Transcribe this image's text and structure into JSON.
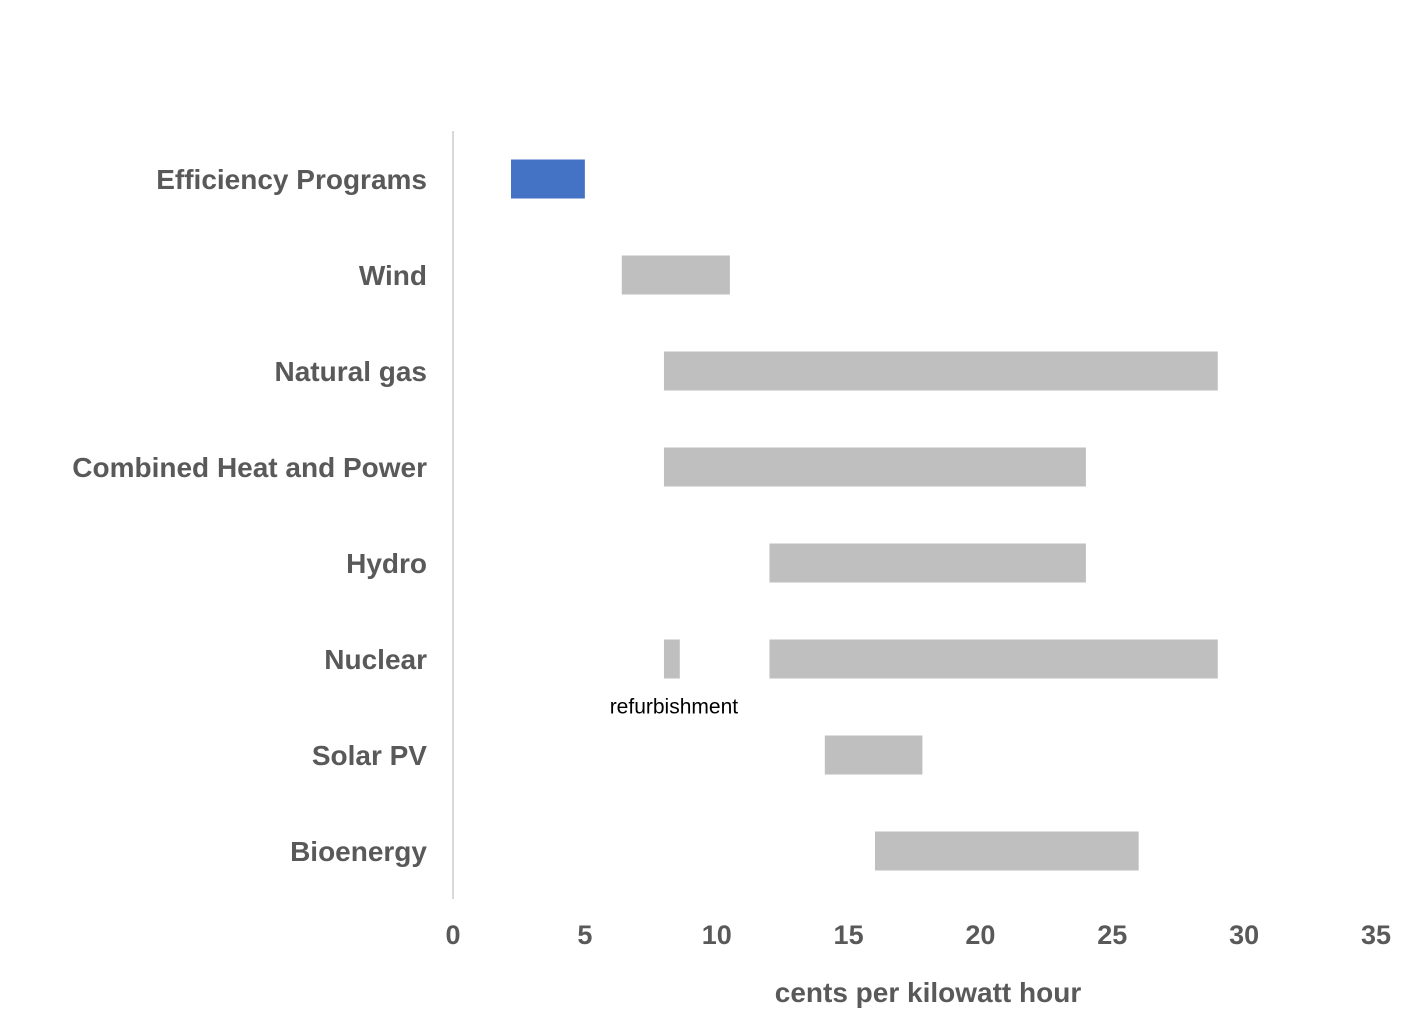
{
  "chart_data": {
    "type": "bar",
    "orientation": "horizontal",
    "subtype": "floating-range",
    "categories": [
      "Efficiency Programs",
      "Wind",
      "Natural gas",
      "Combined Heat and Power",
      "Hydro",
      "Nuclear",
      "Solar PV",
      "Bioenergy"
    ],
    "ranges": [
      [
        [
          2.2,
          5.0
        ]
      ],
      [
        [
          6.4,
          10.5
        ]
      ],
      [
        [
          8.0,
          29.0
        ]
      ],
      [
        [
          8.0,
          24.0
        ]
      ],
      [
        [
          12.0,
          24.0
        ]
      ],
      [
        [
          8.0,
          8.6
        ],
        [
          12.0,
          29.0
        ]
      ],
      [
        [
          14.1,
          17.8
        ]
      ],
      [
        [
          16.0,
          26.0
        ]
      ]
    ],
    "bar_colors": [
      "#4472C4",
      "#BFBFBF",
      "#BFBFBF",
      "#BFBFBF",
      "#BFBFBF",
      "#BFBFBF",
      "#BFBFBF",
      "#BFBFBF"
    ],
    "xlabel": "cents per kilowatt hour",
    "ylabel": "",
    "xlim": [
      0,
      35
    ],
    "xticks": [
      0,
      5,
      10,
      15,
      20,
      25,
      30,
      35
    ],
    "grid": false,
    "annotations": [
      {
        "text": "refurbishment",
        "category": "Nuclear",
        "x": 8.3
      }
    ]
  }
}
